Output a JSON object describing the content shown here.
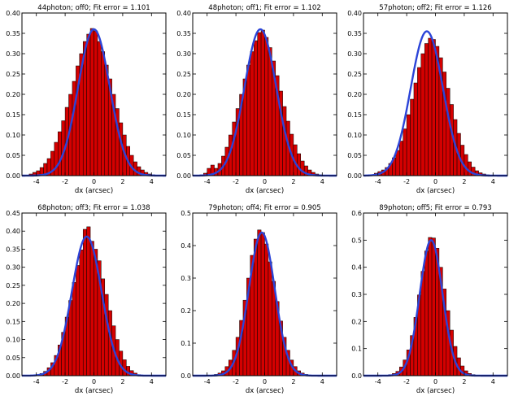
{
  "chart_data": [
    {
      "type": "bar",
      "title": "44photon; off0; Fit error = 1.101",
      "xlabel": "dx (arcsec)",
      "ylabel": "",
      "xlim": [
        -5,
        5
      ],
      "ylim": [
        0,
        0.4
      ],
      "xticks": [
        -4,
        -2,
        0,
        2,
        4
      ],
      "yticks": [
        0.0,
        0.05,
        0.1,
        0.15,
        0.2,
        0.25,
        0.3,
        0.35,
        0.4
      ],
      "ytick_format": 2,
      "bin_start": -4.5,
      "bin_width": 0.25,
      "values": [
        0.004,
        0.008,
        0.012,
        0.02,
        0.03,
        0.042,
        0.06,
        0.082,
        0.108,
        0.135,
        0.168,
        0.2,
        0.232,
        0.27,
        0.3,
        0.33,
        0.348,
        0.362,
        0.356,
        0.33,
        0.305,
        0.272,
        0.238,
        0.2,
        0.165,
        0.13,
        0.1,
        0.072,
        0.05,
        0.034,
        0.022,
        0.014,
        0.008,
        0.004,
        0.002,
        0.001
      ],
      "fit": {
        "mean": 0.0,
        "sigma": 1.1,
        "amplitude": 0.36
      }
    },
    {
      "type": "bar",
      "title": "48photon; off1; Fit error = 1.102",
      "xlabel": "dx (arcsec)",
      "ylabel": "",
      "xlim": [
        -5,
        5
      ],
      "ylim": [
        0,
        0.4
      ],
      "xticks": [
        -4,
        -2,
        0,
        2,
        4
      ],
      "yticks": [
        0.0,
        0.05,
        0.1,
        0.15,
        0.2,
        0.25,
        0.3,
        0.35,
        0.4
      ],
      "ytick_format": 2,
      "bin_start": -4.5,
      "bin_width": 0.25,
      "values": [
        0.002,
        0.006,
        0.018,
        0.026,
        0.018,
        0.03,
        0.048,
        0.07,
        0.1,
        0.132,
        0.165,
        0.2,
        0.238,
        0.272,
        0.305,
        0.332,
        0.352,
        0.358,
        0.34,
        0.315,
        0.282,
        0.246,
        0.208,
        0.17,
        0.134,
        0.102,
        0.076,
        0.054,
        0.036,
        0.024,
        0.014,
        0.008,
        0.004,
        0.002,
        0.001,
        0.0
      ],
      "fit": {
        "mean": -0.3,
        "sigma": 1.1,
        "amplitude": 0.36
      }
    },
    {
      "type": "bar",
      "title": "57photon; off2; Fit error = 1.126",
      "xlabel": "dx (arcsec)",
      "ylabel": "",
      "xlim": [
        -5,
        5
      ],
      "ylim": [
        0,
        0.4
      ],
      "xticks": [
        -4,
        -2,
        0,
        2,
        4
      ],
      "yticks": [
        0.0,
        0.05,
        0.1,
        0.15,
        0.2,
        0.25,
        0.3,
        0.35,
        0.4
      ],
      "ytick_format": 2,
      "bin_start": -4.5,
      "bin_width": 0.25,
      "values": [
        0.002,
        0.006,
        0.01,
        0.014,
        0.02,
        0.03,
        0.044,
        0.062,
        0.085,
        0.115,
        0.15,
        0.188,
        0.228,
        0.266,
        0.3,
        0.325,
        0.338,
        0.335,
        0.318,
        0.29,
        0.255,
        0.215,
        0.175,
        0.138,
        0.104,
        0.075,
        0.052,
        0.034,
        0.021,
        0.012,
        0.007,
        0.004,
        0.002,
        0.001,
        0.0,
        0.0
      ],
      "fit": {
        "mean": -0.6,
        "sigma": 1.12,
        "amplitude": 0.355
      }
    },
    {
      "type": "bar",
      "title": "68photon; off3; Fit error = 1.038",
      "xlabel": "dx (arcsec)",
      "ylabel": "",
      "xlim": [
        -5,
        5
      ],
      "ylim": [
        0,
        0.45
      ],
      "xticks": [
        -4,
        -2,
        0,
        2,
        4
      ],
      "yticks": [
        0.0,
        0.05,
        0.1,
        0.15,
        0.2,
        0.25,
        0.3,
        0.35,
        0.4,
        0.45
      ],
      "ytick_format": 2,
      "bin_start": -4.5,
      "bin_width": 0.25,
      "values": [
        0.0,
        0.001,
        0.003,
        0.006,
        0.012,
        0.022,
        0.036,
        0.056,
        0.085,
        0.12,
        0.162,
        0.208,
        0.258,
        0.305,
        0.348,
        0.405,
        0.412,
        0.372,
        0.35,
        0.318,
        0.268,
        0.225,
        0.18,
        0.138,
        0.1,
        0.068,
        0.044,
        0.026,
        0.014,
        0.007,
        0.003,
        0.001,
        0.0,
        0.0,
        0.0,
        0.0
      ],
      "fit": {
        "mean": -0.5,
        "sigma": 1.03,
        "amplitude": 0.385
      }
    },
    {
      "type": "bar",
      "title": "79photon; off4; Fit error = 0.905",
      "xlabel": "dx (arcsec)",
      "ylabel": "",
      "xlim": [
        -5,
        5
      ],
      "ylim": [
        0,
        0.5
      ],
      "xticks": [
        -4,
        -2,
        0,
        2,
        4
      ],
      "yticks": [
        0.0,
        0.1,
        0.2,
        0.3,
        0.4,
        0.5
      ],
      "ytick_format": 1,
      "bin_start": -4.5,
      "bin_width": 0.25,
      "values": [
        0.0,
        0.0,
        0.001,
        0.002,
        0.004,
        0.008,
        0.015,
        0.028,
        0.048,
        0.078,
        0.118,
        0.17,
        0.232,
        0.3,
        0.37,
        0.42,
        0.448,
        0.44,
        0.405,
        0.35,
        0.29,
        0.228,
        0.168,
        0.118,
        0.078,
        0.048,
        0.028,
        0.015,
        0.008,
        0.004,
        0.002,
        0.001,
        0.0,
        0.0,
        0.0,
        0.0
      ],
      "fit": {
        "mean": -0.2,
        "sigma": 0.9,
        "amplitude": 0.44
      }
    },
    {
      "type": "bar",
      "title": "89photon; off5; Fit error = 0.793",
      "xlabel": "dx (arcsec)",
      "ylabel": "",
      "xlim": [
        -5,
        5
      ],
      "ylim": [
        0,
        0.6
      ],
      "xticks": [
        -4,
        -2,
        0,
        2,
        4
      ],
      "yticks": [
        0.0,
        0.1,
        0.2,
        0.3,
        0.4,
        0.5,
        0.6
      ],
      "ytick_format": 1,
      "bin_start": -4.5,
      "bin_width": 0.25,
      "values": [
        0.0,
        0.0,
        0.0,
        0.001,
        0.002,
        0.004,
        0.008,
        0.016,
        0.032,
        0.058,
        0.095,
        0.148,
        0.215,
        0.298,
        0.385,
        0.46,
        0.51,
        0.508,
        0.47,
        0.4,
        0.32,
        0.24,
        0.168,
        0.108,
        0.066,
        0.036,
        0.018,
        0.008,
        0.004,
        0.002,
        0.001,
        0.0,
        0.0,
        0.0,
        0.0,
        0.0
      ],
      "fit": {
        "mean": -0.3,
        "sigma": 0.79,
        "amplitude": 0.5
      }
    }
  ]
}
